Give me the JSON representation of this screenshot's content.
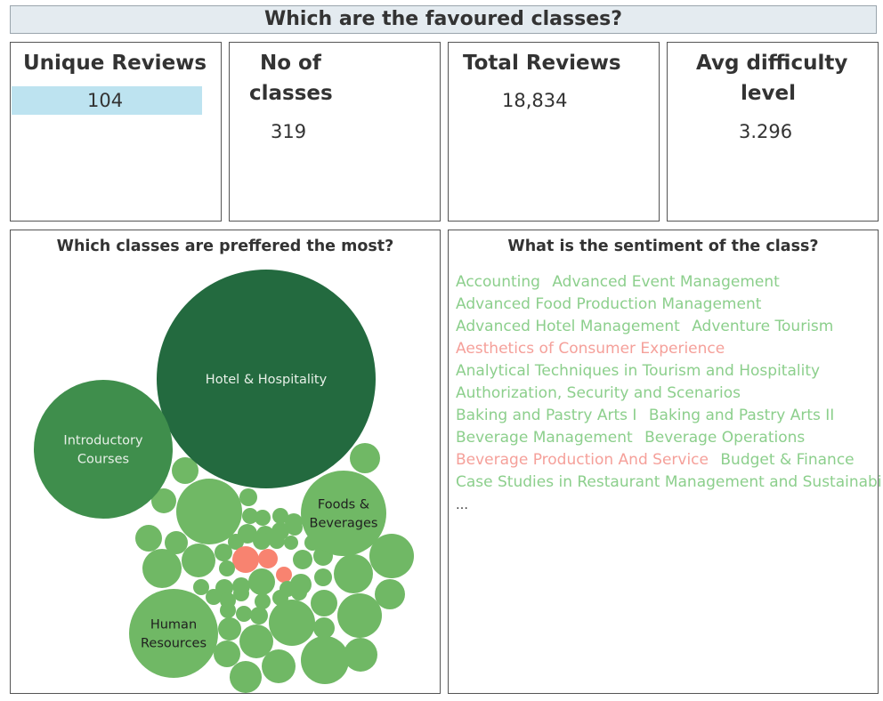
{
  "dashboard": {
    "title": "Which are the favoured classes?"
  },
  "kpis": [
    {
      "label": "Unique Reviews",
      "value": "104"
    },
    {
      "label_line1": "No of",
      "label_line2": "classes",
      "value": "319"
    },
    {
      "label": "Total Reviews",
      "value": "18,834"
    },
    {
      "label_line1": "Avg difficulty",
      "label_line2": "level",
      "value": "3.296"
    }
  ],
  "bubble_panel": {
    "title": "Which classes are preffered the most?"
  },
  "sentiment_panel": {
    "title": "What is the sentiment of the class?",
    "more": "…",
    "words": [
      {
        "text": "Accounting",
        "sentiment": "positive"
      },
      {
        "text": "Advanced Event Management",
        "sentiment": "positive"
      },
      {
        "text": "Advanced Food Production Management",
        "sentiment": "positive"
      },
      {
        "text": "Advanced Hotel Management",
        "sentiment": "positive"
      },
      {
        "text": "Adventure Tourism",
        "sentiment": "positive"
      },
      {
        "text": "Aesthetics of Consumer Experience",
        "sentiment": "negative"
      },
      {
        "text": "Analytical Techniques in Tourism and Hospitality",
        "sentiment": "positive"
      },
      {
        "text": "Authorization, Security and Scenarios",
        "sentiment": "positive"
      },
      {
        "text": "Baking and Pastry Arts I",
        "sentiment": "positive"
      },
      {
        "text": "Baking and Pastry Arts II",
        "sentiment": "positive"
      },
      {
        "text": "Beverage Management",
        "sentiment": "positive"
      },
      {
        "text": "Beverage Operations",
        "sentiment": "positive"
      },
      {
        "text": "Beverage Production And Service",
        "sentiment": "negative"
      },
      {
        "text": "Budget & Finance",
        "sentiment": "positive"
      },
      {
        "text": "Case Studies in Restaurant Management and Sustainability",
        "sentiment": "positive"
      }
    ]
  },
  "colors": {
    "positive": "#8ccf8c",
    "negative": "#f5a09a",
    "bubble_dark": "#236a3f",
    "bubble_mid": "#3f8e4c",
    "bubble_light": "#70b865",
    "bubble_negative": "#f88370",
    "highlight": "#bde3f0"
  },
  "chart_data": {
    "type": "bubble",
    "named_bubbles": [
      {
        "label_lines": [
          "Hotel &  Hospitality"
        ],
        "shade": "dark"
      },
      {
        "label_lines": [
          "Introductory",
          "Courses"
        ],
        "shade": "mid"
      },
      {
        "label_lines": [
          "Foods &",
          "Beverages"
        ],
        "shade": "light"
      },
      {
        "label_lines": [
          "Human",
          "Resources"
        ],
        "shade": "light"
      }
    ]
  }
}
